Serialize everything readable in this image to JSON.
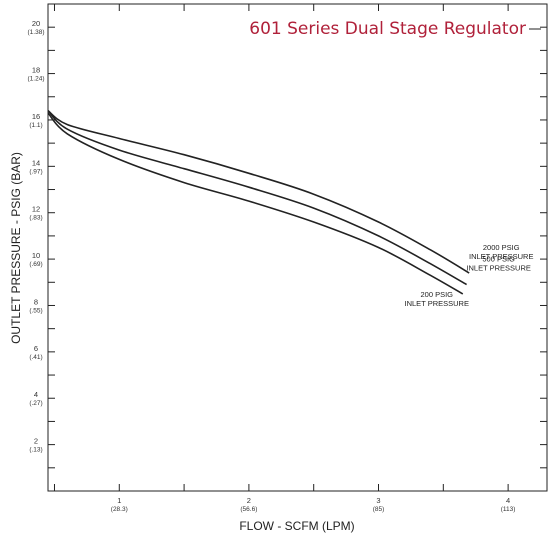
{
  "chart_data": {
    "type": "line",
    "title": "601 Series Dual Stage Regulator",
    "title_color": "#b0213a",
    "xlabel": "FLOW - SCFM (LPM)",
    "ylabel": "OUTLET PRESSURE - PSIG (BAR)",
    "xlim": [
      0.45,
      4.3
    ],
    "ylim": [
      0,
      21
    ],
    "x_ticks": [
      {
        "value": 1,
        "label": "1",
        "sub": "(28.3)"
      },
      {
        "value": 2,
        "label": "2",
        "sub": "(56.6)"
      },
      {
        "value": 3,
        "label": "3",
        "sub": "(85)"
      },
      {
        "value": 4,
        "label": "4",
        "sub": "(113)"
      }
    ],
    "y_ticks": [
      {
        "value": 2,
        "label": "2",
        "sub": "(.13)"
      },
      {
        "value": 4,
        "label": "4",
        "sub": "(.27)"
      },
      {
        "value": 6,
        "label": "6",
        "sub": "(.41)"
      },
      {
        "value": 8,
        "label": "8",
        "sub": "(.55)"
      },
      {
        "value": 10,
        "label": "10",
        "sub": "(.69)"
      },
      {
        "value": 12,
        "label": "12",
        "sub": "(.83)"
      },
      {
        "value": 14,
        "label": "14",
        "sub": "(.97)"
      },
      {
        "value": 16,
        "label": "16",
        "sub": "(1.1)"
      },
      {
        "value": 18,
        "label": "18",
        "sub": "(1.24)"
      },
      {
        "value": 20,
        "label": "20",
        "sub": "(1.38)"
      }
    ],
    "grid": false,
    "series": [
      {
        "name": "2000 PSIG INLET PRESSURE",
        "label_lines": [
          "2000 PSIG",
          "INLET PRESSURE"
        ],
        "x": [
          0.45,
          0.6,
          1.0,
          1.5,
          2.0,
          2.5,
          3.0,
          3.4,
          3.7
        ],
        "y": [
          16.4,
          15.8,
          15.2,
          14.5,
          13.7,
          12.8,
          11.6,
          10.4,
          9.4
        ]
      },
      {
        "name": "500 PSIG INLET PRESSURE",
        "label_lines": [
          "500 PSIG",
          "INLET PRESSURE"
        ],
        "x": [
          0.45,
          0.6,
          1.0,
          1.5,
          2.0,
          2.5,
          3.0,
          3.4,
          3.68
        ],
        "y": [
          16.4,
          15.6,
          14.7,
          13.9,
          13.1,
          12.2,
          11.0,
          9.8,
          8.9
        ]
      },
      {
        "name": "200 PSIG INLET PRESSURE",
        "label_lines": [
          "200 PSIG",
          "INLET PRESSURE"
        ],
        "x": [
          0.45,
          0.6,
          1.0,
          1.5,
          2.0,
          2.5,
          3.0,
          3.4,
          3.65
        ],
        "y": [
          16.3,
          15.4,
          14.3,
          13.3,
          12.5,
          11.6,
          10.5,
          9.3,
          8.5
        ]
      }
    ]
  }
}
